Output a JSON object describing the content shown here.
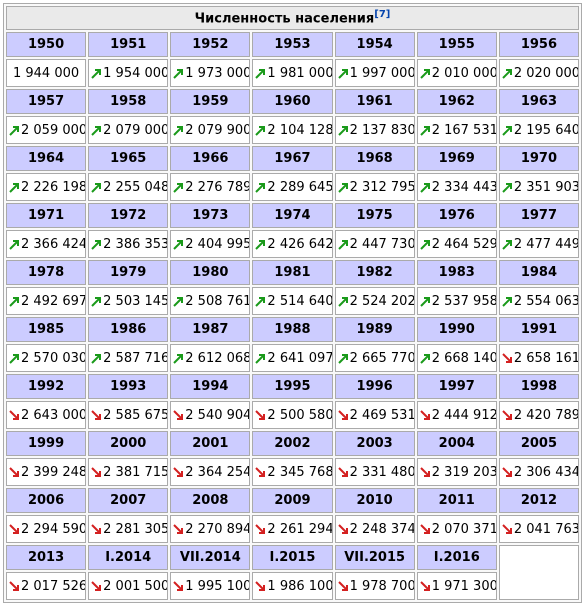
{
  "table": {
    "title": "Численность населения",
    "title_ref": "[7]",
    "rows": [
      {
        "years": [
          "1950",
          "1951",
          "1952",
          "1953",
          "1954",
          "1955",
          "1956"
        ],
        "values": [
          "1 944 000",
          "1 954 000",
          "1 973 000",
          "1 981 000",
          "1 997 000",
          "2 010 000",
          "2 020 000"
        ]
      },
      {
        "years": [
          "1957",
          "1958",
          "1959",
          "1960",
          "1961",
          "1962",
          "1963"
        ],
        "values": [
          "2 059 000",
          "2 079 000",
          "2 079 900",
          "2 104 128",
          "2 137 830",
          "2 167 531",
          "2 195 640"
        ]
      },
      {
        "years": [
          "1964",
          "1965",
          "1966",
          "1967",
          "1968",
          "1969",
          "1970"
        ],
        "values": [
          "2 226 198",
          "2 255 048",
          "2 276 789",
          "2 289 645",
          "2 312 795",
          "2 334 443",
          "2 351 903"
        ]
      },
      {
        "years": [
          "1971",
          "1972",
          "1973",
          "1974",
          "1975",
          "1976",
          "1977"
        ],
        "values": [
          "2 366 424",
          "2 386 353",
          "2 404 995",
          "2 426 642",
          "2 447 730",
          "2 464 529",
          "2 477 449"
        ]
      },
      {
        "years": [
          "1978",
          "1979",
          "1980",
          "1981",
          "1982",
          "1983",
          "1984"
        ],
        "values": [
          "2 492 697",
          "2 503 145",
          "2 508 761",
          "2 514 640",
          "2 524 202",
          "2 537 958",
          "2 554 063"
        ]
      },
      {
        "years": [
          "1985",
          "1986",
          "1987",
          "1988",
          "1989",
          "1990",
          "1991"
        ],
        "values": [
          "2 570 030",
          "2 587 716",
          "2 612 068",
          "2 641 097",
          "2 665 770",
          "2 668 140",
          "2 658 161"
        ]
      },
      {
        "years": [
          "1992",
          "1993",
          "1994",
          "1995",
          "1996",
          "1997",
          "1998"
        ],
        "values": [
          "2 643 000",
          "2 585 675",
          "2 540 904",
          "2 500 580",
          "2 469 531",
          "2 444 912",
          "2 420 789"
        ]
      },
      {
        "years": [
          "1999",
          "2000",
          "2001",
          "2002",
          "2003",
          "2004",
          "2005"
        ],
        "values": [
          "2 399 248",
          "2 381 715",
          "2 364 254",
          "2 345 768",
          "2 331 480",
          "2 319 203",
          "2 306 434"
        ]
      },
      {
        "years": [
          "2006",
          "2007",
          "2008",
          "2009",
          "2010",
          "2011",
          "2012"
        ],
        "values": [
          "2 294 590",
          "2 281 305",
          "2 270 894",
          "2 261 294",
          "2 248 374",
          "2 070 371",
          "2 041 763"
        ]
      },
      {
        "years": [
          "2013",
          "I.2014",
          "VII.2014",
          "I.2015",
          "VII.2015",
          "I.2016"
        ],
        "values": [
          "2 017 526",
          "2 001 500",
          "1 995 100",
          "1 986 100",
          "1 978 700",
          "1 971 300"
        ]
      }
    ]
  }
}
